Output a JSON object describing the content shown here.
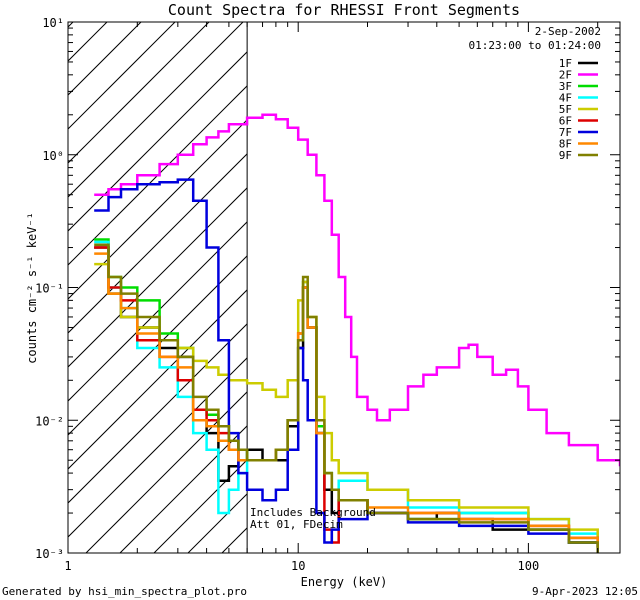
{
  "chart_data": {
    "type": "line",
    "title": "Count Spectra for RHESSI Front Segments",
    "xlabel": "Energy (keV)",
    "ylabel": "counts cm⁻² s⁻¹ keV⁻¹",
    "xscale": "log",
    "yscale": "log",
    "xlim": [
      1,
      250
    ],
    "ylim": [
      0.001,
      10
    ],
    "x_ticks": [
      {
        "value": 1,
        "label": "1"
      },
      {
        "value": 10,
        "label": "10"
      },
      {
        "value": 100,
        "label": "100"
      }
    ],
    "y_ticks": [
      {
        "value": 10,
        "label": "10¹"
      },
      {
        "value": 1,
        "label": "10⁰"
      },
      {
        "value": 0.1,
        "label": "10⁻¹"
      },
      {
        "value": 0.01,
        "label": "10⁻²"
      },
      {
        "value": 0.001,
        "label": "10⁻³"
      }
    ],
    "date": "2-Sep-2002",
    "time_range": "01:23:00 to 01:24:00",
    "excluded_region_max_keV": 6,
    "annotation_lines": [
      "Includes Background",
      "Att 01, FDecim"
    ],
    "footer_left": "Generated by hsi_min_spectra_plot.pro",
    "footer_right": "9-Apr-2023 12:05",
    "series": [
      {
        "name": "1F",
        "color": "#000000",
        "x": [
          1.3,
          1.5,
          1.7,
          2,
          2.5,
          3,
          3.5,
          4,
          4.5,
          5,
          5.5,
          6,
          7,
          8,
          9,
          10,
          10.5,
          11,
          12,
          13,
          14,
          15,
          20,
          30,
          40,
          50,
          70,
          100,
          150,
          200
        ],
        "y": [
          0.2,
          0.09,
          0.06,
          0.05,
          0.035,
          0.03,
          0.01,
          0.008,
          0.0035,
          0.0045,
          0.005,
          0.006,
          0.005,
          0.005,
          0.009,
          0.035,
          0.1,
          0.05,
          0.008,
          0.003,
          0.002,
          0.0025,
          0.002,
          0.0018,
          0.002,
          0.0018,
          0.0015,
          0.0015,
          0.0012,
          0.0011
        ]
      },
      {
        "name": "2F",
        "color": "#ff00ff",
        "x": [
          1.3,
          1.5,
          1.7,
          2,
          2.5,
          3,
          3.5,
          4,
          4.5,
          5,
          6,
          7,
          8,
          9,
          10,
          11,
          12,
          13,
          14,
          15,
          16,
          17,
          18,
          20,
          22,
          25,
          30,
          35,
          40,
          50,
          55,
          60,
          70,
          80,
          90,
          100,
          120,
          150,
          200,
          250
        ],
        "y": [
          0.5,
          0.55,
          0.6,
          0.7,
          0.85,
          1,
          1.2,
          1.35,
          1.5,
          1.7,
          1.9,
          2.0,
          1.85,
          1.6,
          1.3,
          1.0,
          0.7,
          0.45,
          0.25,
          0.12,
          0.06,
          0.03,
          0.015,
          0.012,
          0.01,
          0.012,
          0.018,
          0.022,
          0.025,
          0.035,
          0.037,
          0.03,
          0.022,
          0.024,
          0.018,
          0.012,
          0.008,
          0.0065,
          0.005,
          0.0045
        ]
      },
      {
        "name": "3F",
        "color": "#00dd00",
        "x": [
          1.3,
          1.5,
          1.7,
          2,
          2.5,
          3,
          3.5,
          4,
          4.5,
          5,
          5.5,
          6,
          7,
          8,
          9,
          10,
          10.5,
          11,
          12,
          13,
          14,
          15,
          20,
          30,
          50,
          100,
          150,
          200
        ],
        "y": [
          0.23,
          0.12,
          0.1,
          0.08,
          0.045,
          0.035,
          0.012,
          0.011,
          0.009,
          0.007,
          0.006,
          0.005,
          0.005,
          0.006,
          0.01,
          0.04,
          0.11,
          0.05,
          0.009,
          0.004,
          0.003,
          0.0025,
          0.002,
          0.0018,
          0.002,
          0.0015,
          0.0012,
          0.0011
        ]
      },
      {
        "name": "4F",
        "color": "#00ffff",
        "x": [
          1.3,
          1.5,
          1.7,
          2,
          2.5,
          3,
          3.5,
          4,
          4.5,
          5,
          5.5,
          6,
          7,
          8,
          9,
          10,
          10.5,
          11,
          12,
          13,
          14,
          15,
          20,
          30,
          50,
          100,
          150,
          200
        ],
        "y": [
          0.22,
          0.1,
          0.07,
          0.035,
          0.025,
          0.015,
          0.008,
          0.006,
          0.002,
          0.003,
          0.004,
          0.005,
          0.005,
          0.006,
          0.01,
          0.04,
          0.1,
          0.05,
          0.008,
          0.004,
          0.003,
          0.0035,
          0.003,
          0.0022,
          0.002,
          0.0018,
          0.0014,
          0.0012
        ]
      },
      {
        "name": "5F",
        "color": "#cccc00",
        "x": [
          1.3,
          1.5,
          1.7,
          2,
          2.5,
          3,
          3.5,
          4,
          4.5,
          5,
          5.5,
          6,
          7,
          8,
          9,
          10,
          10.5,
          11,
          12,
          13,
          14,
          15,
          20,
          30,
          50,
          100,
          150,
          200
        ],
        "y": [
          0.15,
          0.09,
          0.06,
          0.05,
          0.04,
          0.035,
          0.028,
          0.025,
          0.022,
          0.02,
          0.02,
          0.019,
          0.017,
          0.015,
          0.02,
          0.08,
          0.11,
          0.06,
          0.015,
          0.008,
          0.005,
          0.004,
          0.003,
          0.0025,
          0.0022,
          0.0018,
          0.0015,
          0.0013
        ]
      },
      {
        "name": "6F",
        "color": "#dd0000",
        "x": [
          1.3,
          1.5,
          1.7,
          2,
          2.5,
          3,
          3.5,
          4,
          4.5,
          5,
          5.5,
          6,
          7,
          8,
          9,
          10,
          10.5,
          11,
          12,
          13,
          14,
          15,
          20,
          30,
          50,
          100,
          150,
          200
        ],
        "y": [
          0.2,
          0.1,
          0.08,
          0.04,
          0.03,
          0.02,
          0.012,
          0.01,
          0.008,
          0.006,
          0.005,
          0.005,
          0.005,
          0.006,
          0.01,
          0.045,
          0.1,
          0.05,
          0.008,
          0.0015,
          0.0012,
          0.0025,
          0.002,
          0.002,
          0.0018,
          0.0016,
          0.0013,
          0.0011
        ]
      },
      {
        "name": "7F",
        "color": "#0000dd",
        "x": [
          1.3,
          1.5,
          1.7,
          2,
          2.5,
          3,
          3.5,
          4,
          4.5,
          5,
          5.5,
          6,
          7,
          8,
          9,
          10,
          10.5,
          11,
          12,
          13,
          14,
          15,
          20,
          30,
          50,
          100,
          150,
          200
        ],
        "y": [
          0.38,
          0.48,
          0.55,
          0.6,
          0.62,
          0.65,
          0.45,
          0.2,
          0.04,
          0.008,
          0.004,
          0.003,
          0.0025,
          0.003,
          0.006,
          0.035,
          0.02,
          0.01,
          0.002,
          0.0012,
          0.0015,
          0.0018,
          0.002,
          0.0017,
          0.0016,
          0.0014,
          0.0012,
          0.001
        ]
      },
      {
        "name": "8F",
        "color": "#ff8800",
        "x": [
          1.3,
          1.5,
          1.7,
          2,
          2.5,
          3,
          3.5,
          4,
          4.5,
          5,
          5.5,
          6,
          7,
          8,
          9,
          10,
          10.5,
          11,
          12,
          13,
          14,
          15,
          20,
          30,
          50,
          100,
          150,
          200
        ],
        "y": [
          0.18,
          0.09,
          0.07,
          0.045,
          0.03,
          0.025,
          0.01,
          0.009,
          0.007,
          0.006,
          0.005,
          0.005,
          0.005,
          0.006,
          0.01,
          0.045,
          0.1,
          0.05,
          0.008,
          0.004,
          0.003,
          0.0025,
          0.0022,
          0.002,
          0.0018,
          0.0016,
          0.0013,
          0.0011
        ]
      },
      {
        "name": "9F",
        "color": "#808000",
        "x": [
          1.3,
          1.5,
          1.7,
          2,
          2.5,
          3,
          3.5,
          4,
          4.5,
          5,
          5.5,
          6,
          7,
          8,
          9,
          10,
          10.5,
          11,
          12,
          13,
          14,
          15,
          20,
          30,
          50,
          100,
          150,
          200
        ],
        "y": [
          0.21,
          0.12,
          0.09,
          0.06,
          0.04,
          0.03,
          0.015,
          0.012,
          0.009,
          0.007,
          0.006,
          0.005,
          0.005,
          0.006,
          0.01,
          0.04,
          0.12,
          0.06,
          0.01,
          0.004,
          0.003,
          0.0025,
          0.002,
          0.0018,
          0.0017,
          0.0015,
          0.0012,
          0.001
        ]
      }
    ]
  }
}
